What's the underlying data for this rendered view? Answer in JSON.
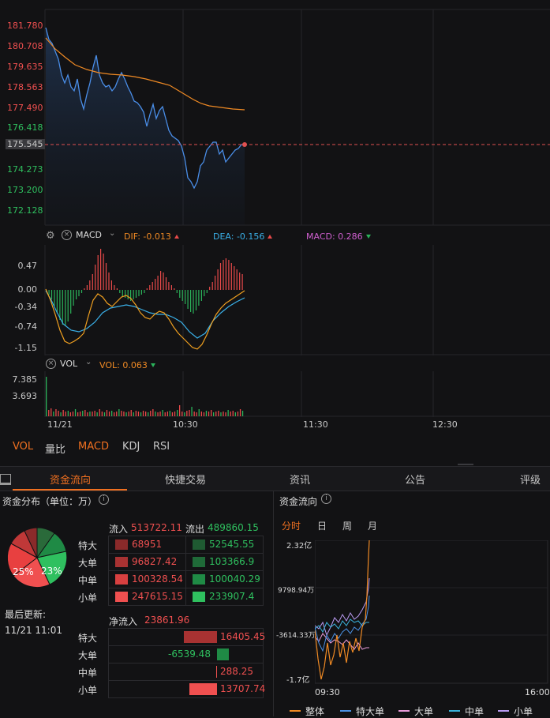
{
  "price_chart": {
    "y_ticks": [
      {
        "label": "181.780",
        "color": "#f05050"
      },
      {
        "label": "180.708",
        "color": "#f05050"
      },
      {
        "label": "179.635",
        "color": "#f05050"
      },
      {
        "label": "178.563",
        "color": "#f05050"
      },
      {
        "label": "177.490",
        "color": "#f05050"
      },
      {
        "label": "176.418",
        "color": "#2fc05f"
      },
      {
        "label": "175.545",
        "color": "#c8c8c8"
      },
      {
        "label": "174.273",
        "color": "#2fc05f"
      },
      {
        "label": "173.200",
        "color": "#2fc05f"
      },
      {
        "label": "172.128",
        "color": "#2fc05f"
      }
    ],
    "current_price": "175.545"
  },
  "macd": {
    "name": "MACD",
    "dif_label": "DIF: -0.013",
    "dea_label": "DEA: -0.156",
    "macd_label": "MACD: 0.286",
    "y_ticks": [
      "0.47",
      "0.00",
      "-0.34",
      "-0.74",
      "-1.15"
    ]
  },
  "vol": {
    "name": "VOL",
    "value_label": "VOL: 0.063",
    "y_ticks": [
      "7.385",
      "3.693"
    ]
  },
  "x_axis": [
    "11/21",
    "10:30",
    "11:30",
    "12:30"
  ],
  "indicator_tabs": [
    {
      "label": "VOL",
      "active": true
    },
    {
      "label": "量比",
      "active": false
    },
    {
      "label": "MACD",
      "active": true
    },
    {
      "label": "KDJ",
      "active": false
    },
    {
      "label": "RSI",
      "active": false
    }
  ],
  "section_tabs": [
    {
      "label": "资金流向",
      "active": true
    },
    {
      "label": "快捷交易",
      "active": false
    },
    {
      "label": "资讯",
      "active": false
    },
    {
      "label": "公告",
      "active": false
    },
    {
      "label": "评级",
      "active": false
    }
  ],
  "fund_distribution": {
    "title": "资金分布（单位：万）",
    "pie_left_pct": "25%",
    "pie_right_pct": "23%",
    "inflow_label": "流入",
    "inflow_total": "513722.11",
    "outflow_label": "流出",
    "outflow_total": "489860.15",
    "rows": [
      {
        "label": "特大",
        "in": "68951",
        "out": "52545.55"
      },
      {
        "label": "大单",
        "in": "96827.42",
        "out": "103366.9"
      },
      {
        "label": "中单",
        "in": "100328.54",
        "out": "100040.29"
      },
      {
        "label": "小单",
        "in": "247615.15",
        "out": "233907.4"
      }
    ],
    "net_label": "净流入",
    "net_total": "23861.96",
    "net_rows": [
      {
        "label": "特大",
        "value": "16405.45",
        "dir": "pos",
        "ratio": 1.0
      },
      {
        "label": "大单",
        "value": "-6539.48",
        "dir": "neg",
        "ratio": 0.4
      },
      {
        "label": "中单",
        "value": "288.25",
        "dir": "pos",
        "ratio": 0.02
      },
      {
        "label": "小单",
        "value": "13707.74",
        "dir": "pos",
        "ratio": 0.84
      }
    ],
    "last_update_label": "最后更新:",
    "last_update_value": "11/21 11:01"
  },
  "fund_flow": {
    "title": "资金流向",
    "periods": [
      {
        "label": "分时",
        "active": true
      },
      {
        "label": "日",
        "active": false
      },
      {
        "label": "周",
        "active": false
      },
      {
        "label": "月",
        "active": false
      }
    ],
    "y_ticks": [
      "2.32亿",
      "9798.94万",
      "-3614.33万",
      "-1.7亿"
    ],
    "x_ticks": [
      "09:30",
      "16:00"
    ],
    "legend": [
      {
        "label": "整体",
        "color": "#f08a24"
      },
      {
        "label": "特大单",
        "color": "#4a90e2"
      },
      {
        "label": "大单",
        "color": "#e89ad8"
      },
      {
        "label": "中单",
        "color": "#3ab0d8"
      },
      {
        "label": "小单",
        "color": "#b89af0"
      }
    ]
  },
  "colors": {
    "up": "#f05050",
    "down": "#2fc05f",
    "accent": "#f07020",
    "price_line": "#4a8ee8",
    "avg_line": "#f08a24"
  }
}
